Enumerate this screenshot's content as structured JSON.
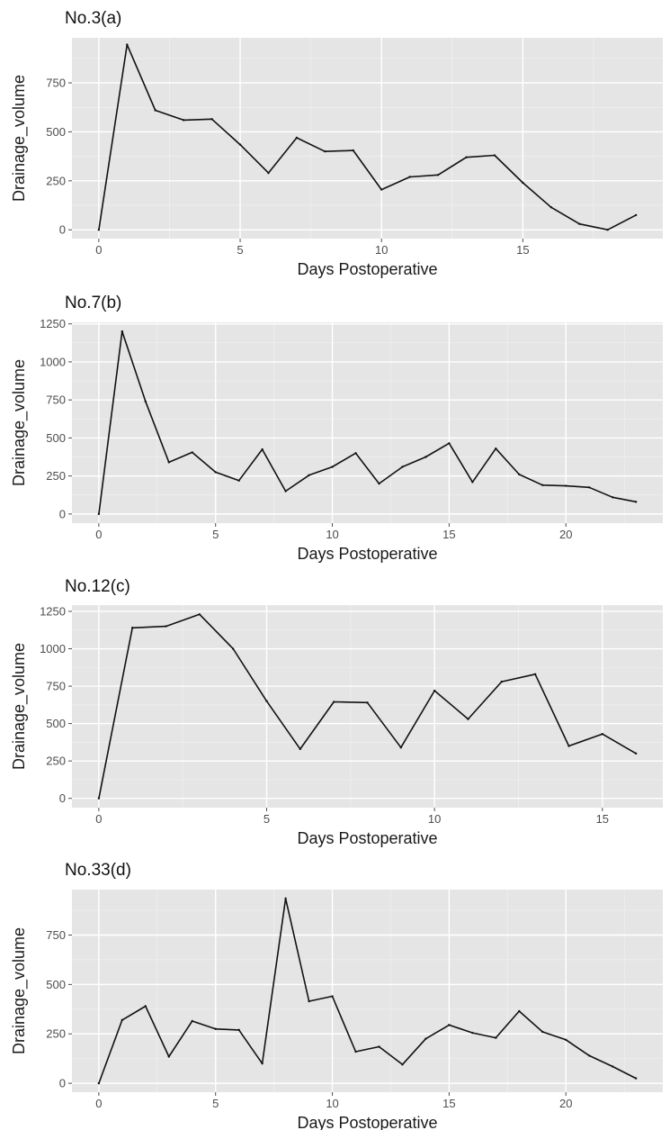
{
  "chart_data": [
    {
      "type": "line",
      "title": "No.3(a)",
      "xlabel": "Days Postoperative",
      "ylabel": "Drainage_volume",
      "xlim": [
        -0.95,
        19.95
      ],
      "ylim": [
        -45,
        980
      ],
      "xticks": [
        0,
        5,
        10,
        15
      ],
      "yticks": [
        0,
        250,
        500,
        750
      ],
      "grid": true,
      "x": [
        0,
        1,
        2,
        3,
        4,
        5,
        6,
        7,
        8,
        9,
        10,
        11,
        12,
        13,
        14,
        15,
        16,
        17,
        18,
        19
      ],
      "y": [
        0,
        945,
        610,
        560,
        565,
        435,
        290,
        470,
        400,
        405,
        205,
        270,
        280,
        370,
        380,
        240,
        115,
        30,
        0,
        75
      ]
    },
    {
      "type": "line",
      "title": "No.7(b)",
      "xlabel": "Days Postoperative",
      "ylabel": "Drainage_volume",
      "xlim": [
        -1.15,
        24.15
      ],
      "ylim": [
        -60,
        1260
      ],
      "xticks": [
        0,
        5,
        10,
        15,
        20
      ],
      "yticks": [
        0,
        250,
        500,
        750,
        1000,
        1250
      ],
      "grid": true,
      "x": [
        0,
        1,
        2,
        3,
        4,
        5,
        6,
        7,
        8,
        9,
        10,
        11,
        12,
        13,
        14,
        15,
        16,
        17,
        18,
        19,
        20,
        21,
        22,
        23
      ],
      "y": [
        0,
        1200,
        740,
        340,
        405,
        275,
        220,
        425,
        150,
        255,
        310,
        400,
        200,
        310,
        375,
        465,
        210,
        430,
        260,
        190,
        185,
        175,
        110,
        80
      ]
    },
    {
      "type": "line",
      "title": "No.12(c)",
      "xlabel": "Days Postoperative",
      "ylabel": "Drainage_volume",
      "xlim": [
        -0.8,
        16.8
      ],
      "ylim": [
        -62,
        1292
      ],
      "xticks": [
        0,
        5,
        10,
        15
      ],
      "yticks": [
        0,
        250,
        500,
        750,
        1000,
        1250
      ],
      "grid": true,
      "x": [
        0,
        1,
        2,
        3,
        4,
        5,
        6,
        7,
        8,
        9,
        10,
        11,
        12,
        13,
        14,
        15,
        16
      ],
      "y": [
        0,
        1140,
        1150,
        1230,
        1000,
        650,
        330,
        645,
        640,
        340,
        720,
        530,
        780,
        830,
        350,
        430,
        300
      ]
    },
    {
      "type": "line",
      "title": "No.33(d)",
      "xlabel": "Days Postoperative",
      "ylabel": "Drainage_volume",
      "xlim": [
        -1.15,
        24.15
      ],
      "ylim": [
        -45,
        980
      ],
      "xticks": [
        0,
        5,
        10,
        15,
        20
      ],
      "yticks": [
        0,
        250,
        500,
        750
      ],
      "grid": true,
      "x": [
        0,
        1,
        2,
        3,
        4,
        5,
        6,
        7,
        8,
        9,
        10,
        11,
        12,
        13,
        14,
        15,
        16,
        17,
        18,
        19,
        20,
        21,
        22,
        23
      ],
      "y": [
        0,
        320,
        390,
        135,
        315,
        275,
        270,
        100,
        935,
        415,
        440,
        160,
        185,
        95,
        225,
        295,
        255,
        230,
        365,
        260,
        220,
        140,
        85,
        25
      ]
    }
  ]
}
